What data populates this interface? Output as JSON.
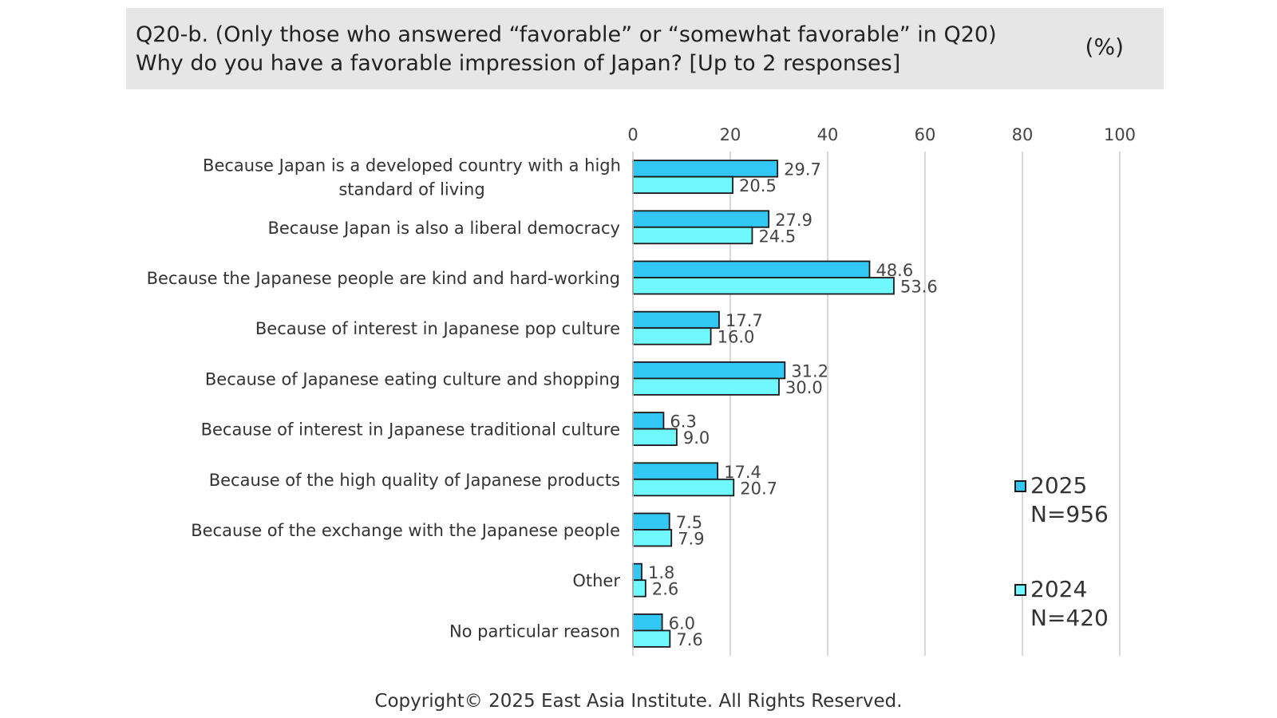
{
  "header": {
    "title_line1": "Q20-b. (Only those who answered “favorable” or “somewhat favorable” in Q20)",
    "title_line2": "Why do you have a favorable impression of Japan? [Up to 2 responses]",
    "unit": "(%)"
  },
  "legend": [
    {
      "year": "2025",
      "n": "N=956"
    },
    {
      "year": "2024",
      "n": "N=420"
    }
  ],
  "colors": {
    "s2025": "#33c7f5",
    "s2024": "#6ff9ff",
    "border": "#1a1a1a",
    "grid": "#cccccc"
  },
  "chart_data": {
    "type": "bar",
    "orientation": "horizontal",
    "categories": [
      [
        "Because Japan is a developed country with a high",
        "standard of living"
      ],
      [
        "Because Japan is also a liberal democracy"
      ],
      [
        "Because the Japanese people are kind and hard-working"
      ],
      [
        "Because of interest in Japanese pop culture"
      ],
      [
        "Because of Japanese eating culture and shopping"
      ],
      [
        "Because of interest in Japanese traditional culture"
      ],
      [
        "Because of the high quality of Japanese products"
      ],
      [
        "Because of the exchange with the Japanese people"
      ],
      [
        "Other"
      ],
      [
        "No particular reason"
      ]
    ],
    "series": [
      {
        "name": "2025",
        "values": [
          29.7,
          27.9,
          48.6,
          17.7,
          31.2,
          6.3,
          17.4,
          7.5,
          1.8,
          6.0
        ]
      },
      {
        "name": "2024",
        "values": [
          20.5,
          24.5,
          53.6,
          16.0,
          30.0,
          9.0,
          20.7,
          7.9,
          2.6,
          7.6
        ]
      }
    ],
    "value_labels": [
      [
        "29.7",
        "27.9",
        "48.6",
        "17.7",
        "31.2",
        "6.3",
        "17.4",
        "7.5",
        "1.8",
        "6.0"
      ],
      [
        "20.5",
        "24.5",
        "53.6",
        "16.0",
        "30.0",
        "9.0",
        "20.7",
        "7.9",
        "2.6",
        "7.6"
      ]
    ],
    "xlim": [
      0,
      100
    ],
    "xticks": [
      "0",
      "20",
      "40",
      "60",
      "80",
      "100"
    ],
    "grid": true,
    "axis_position": "top",
    "legend_position": "right"
  },
  "footer": {
    "copyright": "Copyright© 2025 East Asia Institute. All Rights Reserved."
  }
}
